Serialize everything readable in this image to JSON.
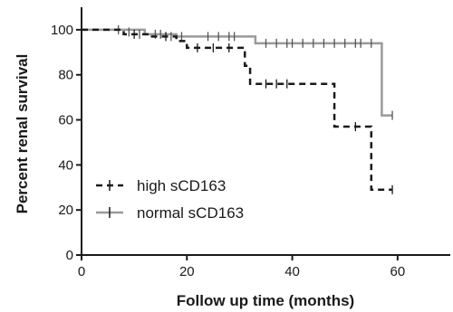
{
  "chart_data": {
    "type": "line",
    "subtype": "kaplan-meier",
    "title": "",
    "xlabel": "Follow up time (months)",
    "ylabel": "Percent renal survival",
    "xlim": [
      0,
      70
    ],
    "ylim": [
      0,
      110
    ],
    "xticks": [
      0,
      20,
      40,
      60
    ],
    "yticks": [
      0,
      20,
      40,
      60,
      80,
      100
    ],
    "grid": false,
    "legend_position": "bottom-left",
    "series": [
      {
        "name": "high sCD163",
        "style": "dashed",
        "color": "#1a1a1a",
        "x": [
          0,
          6,
          8,
          11,
          13,
          18,
          20,
          30,
          31,
          32,
          48,
          55,
          57,
          59
        ],
        "y": [
          100,
          100,
          98,
          98,
          97,
          95,
          92,
          92,
          84,
          76,
          57,
          29,
          29,
          29
        ],
        "censored": [
          [
            10,
            98
          ],
          [
            16,
            97
          ],
          [
            22,
            92
          ],
          [
            25,
            92
          ],
          [
            28,
            92
          ],
          [
            35,
            76
          ],
          [
            37,
            76
          ],
          [
            39,
            76
          ],
          [
            52,
            57
          ],
          [
            59,
            29
          ]
        ]
      },
      {
        "name": "normal sCD163",
        "style": "solid",
        "color": "#9a9a9a",
        "x": [
          0,
          7,
          12,
          18,
          33,
          57,
          59
        ],
        "y": [
          100,
          100,
          98,
          97,
          94,
          62,
          62
        ],
        "censored": [
          [
            7,
            100
          ],
          [
            9,
            99
          ],
          [
            11,
            98
          ],
          [
            14,
            98
          ],
          [
            15,
            98
          ],
          [
            17,
            97
          ],
          [
            19,
            97
          ],
          [
            24,
            97
          ],
          [
            26,
            97
          ],
          [
            28,
            97
          ],
          [
            29,
            97
          ],
          [
            35,
            94
          ],
          [
            37,
            94
          ],
          [
            39,
            94
          ],
          [
            40,
            94
          ],
          [
            42,
            94
          ],
          [
            44,
            94
          ],
          [
            46,
            94
          ],
          [
            48,
            94
          ],
          [
            50,
            94
          ],
          [
            52,
            94
          ],
          [
            53,
            94
          ],
          [
            55,
            94
          ],
          [
            59,
            62
          ]
        ]
      }
    ]
  }
}
